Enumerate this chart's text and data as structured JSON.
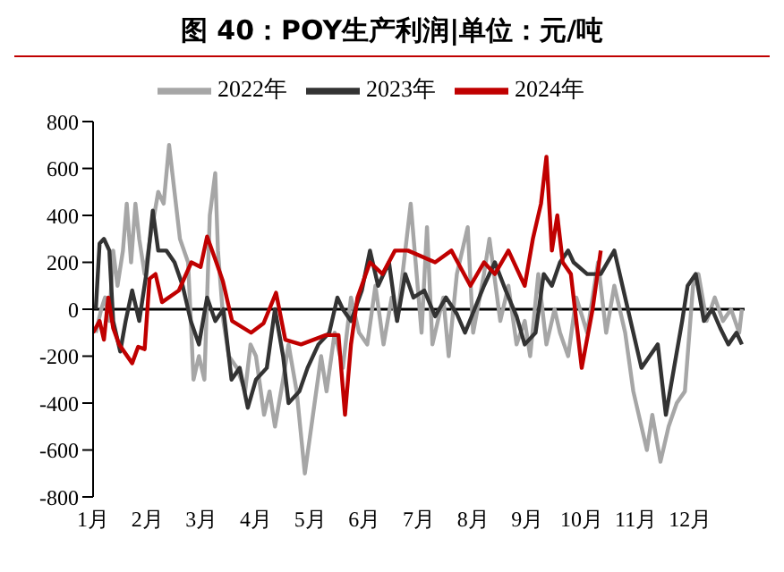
{
  "chart_data": {
    "type": "line",
    "title": "图 40：POY生产利润|单位：元/吨",
    "xlim": [
      1,
      13
    ],
    "xticks": [
      {
        "value": 1,
        "label": "1月"
      },
      {
        "value": 2,
        "label": "2月"
      },
      {
        "value": 3,
        "label": "3月"
      },
      {
        "value": 4,
        "label": "4月"
      },
      {
        "value": 5,
        "label": "5月"
      },
      {
        "value": 6,
        "label": "6月"
      },
      {
        "value": 7,
        "label": "7月"
      },
      {
        "value": 8,
        "label": "8月"
      },
      {
        "value": 9,
        "label": "9月"
      },
      {
        "value": 10,
        "label": "10月"
      },
      {
        "value": 11,
        "label": "11月"
      },
      {
        "value": 12,
        "label": "12月"
      }
    ],
    "ylim": [
      -800,
      800
    ],
    "yticks": [
      -800,
      -600,
      -400,
      -200,
      0,
      200,
      400,
      600,
      800
    ],
    "legend": "top",
    "grid": false,
    "marker": "none",
    "line_style": "solid",
    "ref_lines": [
      {
        "axis": "y",
        "value": 0,
        "color": "#000000"
      }
    ],
    "series": [
      {
        "name": "2024年",
        "color": "#c00000",
        "x": [
          1.0,
          1.12,
          1.2,
          1.28,
          1.37,
          1.48,
          1.72,
          1.83,
          1.95,
          2.04,
          2.15,
          2.27,
          2.58,
          2.81,
          2.98,
          3.1,
          3.27,
          3.39,
          3.56,
          3.91,
          4.14,
          4.37,
          4.54,
          4.83,
          5.29,
          5.52,
          5.64,
          5.75,
          5.87,
          6.1,
          6.33,
          6.56,
          6.8,
          7.3,
          7.6,
          7.95,
          8.2,
          8.4,
          8.65,
          8.95,
          9.1,
          9.25,
          9.35,
          9.45,
          9.55,
          9.65,
          9.8,
          10.0,
          10.2,
          10.35
        ],
        "values": [
          -100,
          -50,
          -130,
          50,
          -80,
          -150,
          -230,
          -160,
          -170,
          130,
          150,
          30,
          80,
          200,
          180,
          310,
          200,
          120,
          -50,
          -100,
          -60,
          70,
          -130,
          -150,
          -110,
          -110,
          -450,
          -150,
          50,
          200,
          150,
          250,
          250,
          200,
          250,
          100,
          200,
          150,
          250,
          100,
          300,
          450,
          650,
          250,
          400,
          200,
          150,
          -250,
          0,
          250
        ]
      },
      {
        "name": "2023年",
        "color": "#333333",
        "x": [
          1.05,
          1.12,
          1.2,
          1.3,
          1.37,
          1.5,
          1.6,
          1.72,
          1.85,
          1.98,
          2.1,
          2.2,
          2.35,
          2.5,
          2.65,
          2.8,
          2.95,
          3.1,
          3.25,
          3.4,
          3.55,
          3.7,
          3.85,
          4.0,
          4.2,
          4.35,
          4.5,
          4.6,
          4.8,
          4.95,
          5.15,
          5.35,
          5.5,
          5.6,
          5.75,
          5.95,
          6.1,
          6.25,
          6.45,
          6.6,
          6.75,
          6.9,
          7.1,
          7.3,
          7.5,
          7.7,
          7.85,
          8.2,
          8.4,
          8.6,
          8.8,
          8.95,
          9.15,
          9.3,
          9.45,
          9.6,
          9.75,
          9.85,
          10.1,
          10.35,
          10.6,
          10.75,
          10.95,
          11.1,
          11.25,
          11.4,
          11.55,
          11.7,
          11.85,
          11.95,
          12.1,
          12.25,
          12.4,
          12.55,
          12.7,
          12.85,
          12.95
        ],
        "values": [
          0,
          280,
          300,
          250,
          -50,
          -180,
          -50,
          80,
          -50,
          150,
          420,
          250,
          250,
          200,
          100,
          -50,
          -150,
          50,
          -50,
          0,
          -300,
          -250,
          -420,
          -300,
          -250,
          0,
          -200,
          -400,
          -350,
          -250,
          -150,
          -100,
          50,
          0,
          -50,
          80,
          250,
          100,
          200,
          -50,
          150,
          50,
          80,
          -30,
          50,
          -20,
          -100,
          100,
          200,
          80,
          -30,
          -150,
          -100,
          150,
          100,
          200,
          250,
          200,
          150,
          150,
          250,
          100,
          -100,
          -250,
          -200,
          -150,
          -450,
          -250,
          -50,
          100,
          150,
          -50,
          0,
          -80,
          -150,
          -100,
          -150
        ]
      },
      {
        "name": "2022年",
        "color": "#a6a6a6",
        "x": [
          1.05,
          1.15,
          1.22,
          1.3,
          1.37,
          1.45,
          1.55,
          1.62,
          1.7,
          1.78,
          1.85,
          1.95,
          2.05,
          2.2,
          2.3,
          2.4,
          2.5,
          2.6,
          2.75,
          2.85,
          2.95,
          3.05,
          3.15,
          3.25,
          3.3,
          3.4,
          3.5,
          3.65,
          3.8,
          3.9,
          4.0,
          4.15,
          4.25,
          4.35,
          4.5,
          4.6,
          4.75,
          4.9,
          5.05,
          5.2,
          5.3,
          5.45,
          5.6,
          5.75,
          5.9,
          6.05,
          6.2,
          6.35,
          6.5,
          6.6,
          6.75,
          6.85,
          7.05,
          7.15,
          7.25,
          7.45,
          7.55,
          7.7,
          7.9,
          8.0,
          8.2,
          8.3,
          8.5,
          8.65,
          8.8,
          8.95,
          9.05,
          9.2,
          9.35,
          9.5,
          9.6,
          9.75,
          9.9,
          10.1,
          10.3,
          10.45,
          10.6,
          10.8,
          10.95,
          11.1,
          11.2,
          11.3,
          11.45,
          11.6,
          11.75,
          11.9,
          12.05,
          12.15,
          12.3,
          12.45,
          12.6,
          12.75,
          12.9,
          12.95
        ],
        "values": [
          -100,
          0,
          50,
          -50,
          250,
          100,
          250,
          450,
          200,
          450,
          300,
          150,
          300,
          500,
          450,
          700,
          500,
          300,
          200,
          -300,
          -200,
          -300,
          400,
          580,
          250,
          -50,
          -200,
          -250,
          -350,
          -150,
          -200,
          -450,
          -350,
          -500,
          -300,
          -150,
          -350,
          -700,
          -450,
          -200,
          -350,
          -100,
          -250,
          50,
          -100,
          -150,
          100,
          -150,
          50,
          -50,
          250,
          450,
          -100,
          350,
          -150,
          50,
          -200,
          150,
          350,
          -100,
          150,
          300,
          -50,
          100,
          -150,
          -50,
          -200,
          150,
          -150,
          0,
          -100,
          -200,
          50,
          -100,
          200,
          -100,
          100,
          -100,
          -350,
          -500,
          -600,
          -450,
          -650,
          -500,
          -400,
          -350,
          100,
          150,
          -50,
          50,
          -50,
          0,
          -100,
          0
        ]
      }
    ]
  }
}
